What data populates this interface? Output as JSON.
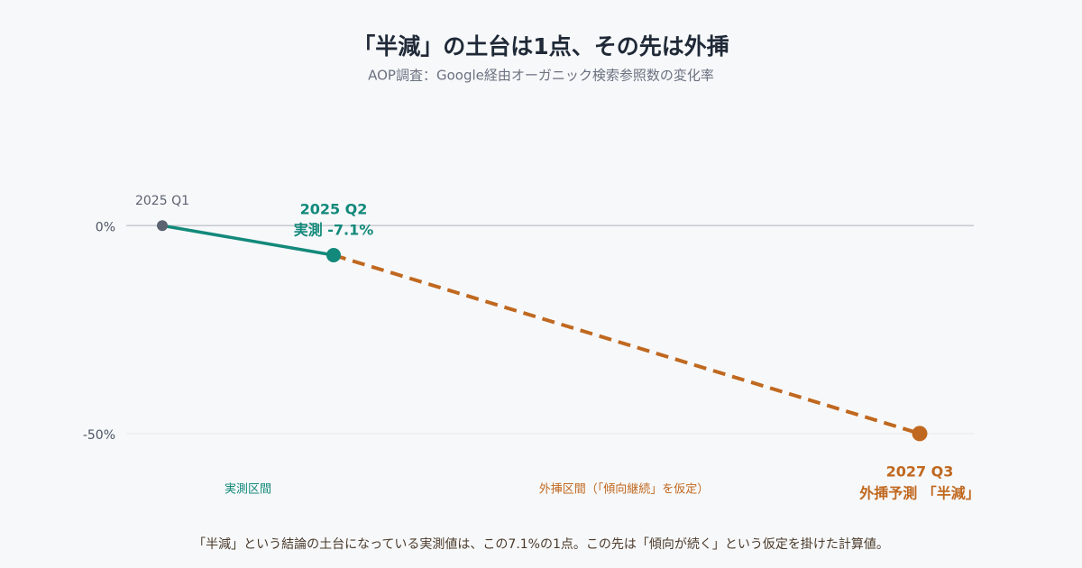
{
  "chart_data": {
    "type": "line",
    "title": "「半減」の土台は1点、その先は外挿",
    "subtitle": "AOP調査：Google経由オーガニック検索参照数の変化率",
    "categories": [
      "2025 Q1",
      "2025 Q2",
      "2027 Q3"
    ],
    "series": [
      {
        "color": "#12897a",
        "values": [
          0,
          -7.1,
          null
        ]
      },
      {
        "color": "#c0681f",
        "dashed": true,
        "values": [
          null,
          -7.1,
          -50
        ]
      }
    ],
    "annotations": [
      "実測 -7.1%",
      "外挿予測 「半減」"
    ],
    "regions": [
      "実測区間",
      "外挿区間（「傾向継続」を仮定）"
    ],
    "footnote": "「半減」という結論の土台になっている実測値は、この7.1%の1点。この先は「傾向が続く」という仮定を掛けた計算値。",
    "ylim": [
      -60,
      20
    ],
    "yticks": [
      {
        "value": 0,
        "label": "0%"
      },
      {
        "value": -50,
        "label": "-50%"
      }
    ],
    "grid": true
  }
}
